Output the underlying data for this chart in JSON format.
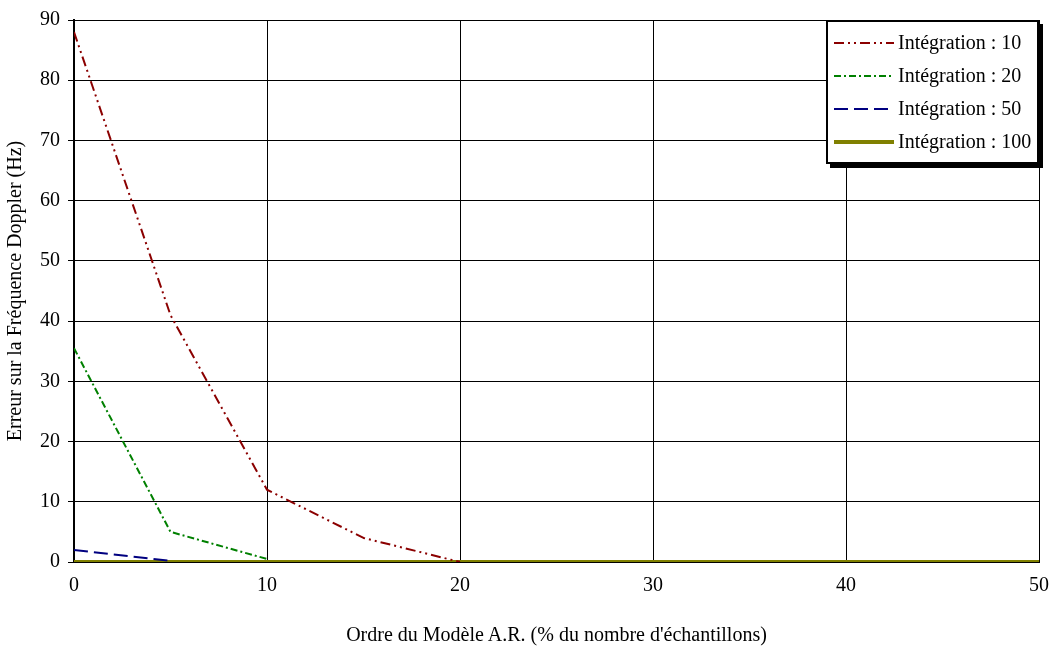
{
  "chart_data": {
    "type": "line",
    "xlabel": "Ordre du Modèle A.R. (% du nombre d'échantillons)",
    "ylabel": "Erreur sur la Fréquence Doppler (Hz)",
    "x": [
      0,
      5,
      10,
      15,
      20,
      25,
      30,
      35,
      40,
      45,
      50
    ],
    "series": [
      {
        "name": "Intégration : 10",
        "color": "#8b0000",
        "line_style": "dashdotdot",
        "values": [
          88,
          41,
          12,
          4,
          0,
          null,
          null,
          null,
          null,
          null,
          null
        ]
      },
      {
        "name": "Intégration : 20",
        "color": "#008000",
        "line_style": "dashdot",
        "values": [
          35.5,
          5,
          0.5,
          null,
          null,
          null,
          null,
          null,
          null,
          null,
          null
        ]
      },
      {
        "name": "Intégration : 50",
        "color": "#000080",
        "line_style": "dashed",
        "values": [
          2,
          0.2,
          null,
          null,
          null,
          null,
          null,
          null,
          null,
          null,
          null
        ]
      },
      {
        "name": "Intégration : 100",
        "color": "#808000",
        "line_style": "solid",
        "values": [
          0,
          0,
          0,
          0,
          0,
          0,
          0,
          0,
          0,
          0,
          0
        ]
      }
    ],
    "xlim": [
      0,
      50
    ],
    "xticks": [
      0,
      10,
      20,
      30,
      40,
      50
    ],
    "ylim": [
      0,
      90
    ],
    "yticks": [
      0,
      10,
      20,
      30,
      40,
      50,
      60,
      70,
      80,
      90
    ],
    "grid": true,
    "legend": "top right",
    "marker": "none"
  }
}
